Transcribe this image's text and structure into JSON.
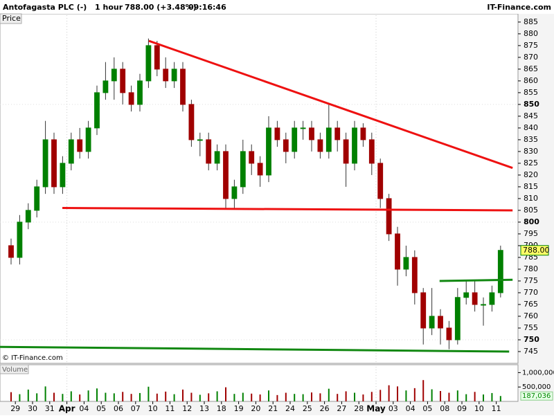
{
  "chart_data": {
    "type": "candlestick",
    "title": "Antofagasta PLC (-)",
    "interval": "1 hour",
    "last_quote": "788.00 (+3.48%)",
    "time": "09:16:46",
    "source": "IT-Finance.com",
    "copyright": "© IT-Finance.com",
    "price_label": "Price",
    "volume_label": "Volume",
    "categories": [
      "29",
      "30",
      "31",
      "Apr",
      "04",
      "05",
      "06",
      "07",
      "10",
      "11",
      "12",
      "13",
      "18",
      "19",
      "20",
      "21",
      "24",
      "25",
      "26",
      "27",
      "28",
      "May",
      "03",
      "04",
      "05",
      "08",
      "09",
      "10",
      "11"
    ],
    "candles_per_category": 2,
    "up_color": "#008000",
    "down_color": "#a00000",
    "open": [
      790,
      785,
      800,
      805,
      815,
      835,
      815,
      825,
      835,
      830,
      840,
      855,
      860,
      865,
      855,
      850,
      860,
      875,
      865,
      860,
      865,
      850,
      835,
      835,
      825,
      830,
      810,
      815,
      830,
      825,
      820,
      840,
      835,
      830,
      840,
      840,
      835,
      830,
      840,
      835,
      825,
      840,
      835,
      825,
      810,
      795,
      780,
      785,
      770,
      755,
      760,
      755,
      750,
      768,
      770,
      765,
      765,
      770
    ],
    "high": [
      793,
      803,
      808,
      818,
      843,
      838,
      828,
      838,
      840,
      843,
      858,
      868,
      870,
      868,
      858,
      863,
      878,
      877,
      870,
      868,
      868,
      852,
      838,
      838,
      833,
      833,
      818,
      835,
      833,
      828,
      845,
      843,
      838,
      843,
      843,
      843,
      838,
      850,
      843,
      838,
      843,
      842,
      838,
      827,
      812,
      798,
      790,
      788,
      772,
      772,
      763,
      758,
      772,
      775,
      775,
      768,
      773,
      790
    ],
    "low": [
      782,
      782,
      797,
      802,
      812,
      812,
      812,
      822,
      827,
      827,
      837,
      852,
      852,
      850,
      847,
      847,
      857,
      862,
      857,
      857,
      847,
      832,
      828,
      822,
      822,
      806,
      806,
      812,
      820,
      815,
      817,
      832,
      825,
      827,
      835,
      830,
      827,
      827,
      830,
      815,
      822,
      832,
      820,
      806,
      792,
      773,
      777,
      765,
      748,
      752,
      748,
      746,
      748,
      765,
      762,
      756,
      762,
      768
    ],
    "close": [
      785,
      800,
      805,
      815,
      835,
      815,
      825,
      835,
      830,
      840,
      855,
      860,
      865,
      855,
      850,
      860,
      875,
      865,
      860,
      865,
      850,
      835,
      835,
      825,
      830,
      810,
      815,
      830,
      825,
      820,
      840,
      835,
      830,
      840,
      840,
      835,
      830,
      840,
      835,
      825,
      840,
      835,
      825,
      810,
      795,
      780,
      785,
      770,
      755,
      760,
      755,
      750,
      768,
      770,
      765,
      765,
      770,
      788
    ],
    "close_value_labels": [
      null,
      null,
      null,
      null,
      null,
      null,
      null,
      null,
      null,
      null,
      null,
      null,
      null,
      null,
      null,
      null,
      null,
      null,
      null,
      null,
      null,
      null,
      null,
      null,
      null,
      null,
      null,
      null,
      null,
      null,
      null,
      null,
      null,
      null,
      null,
      null,
      null,
      null,
      null,
      null,
      null,
      null,
      null,
      null,
      null,
      null,
      null,
      null,
      null,
      null,
      null,
      null,
      null,
      null,
      null,
      null,
      null,
      "788.00"
    ],
    "volume": [
      320000,
      250000,
      410000,
      280000,
      520000,
      300000,
      260000,
      350000,
      240000,
      380000,
      450000,
      300000,
      280000,
      330000,
      260000,
      290000,
      510000,
      270000,
      340000,
      250000,
      410000,
      300000,
      230000,
      280000,
      350000,
      490000,
      260000,
      300000,
      270000,
      240000,
      380000,
      220000,
      300000,
      260000,
      250000,
      310000,
      280000,
      440000,
      260000,
      350000,
      300000,
      240000,
      330000,
      400000,
      560000,
      520000,
      380000,
      460000,
      740000,
      420000,
      360000,
      300000,
      380000,
      250000,
      330000,
      240000,
      290000,
      187036
    ],
    "volume_value_labels": [
      null,
      null,
      null,
      null,
      null,
      null,
      null,
      null,
      null,
      null,
      null,
      null,
      null,
      null,
      null,
      null,
      null,
      null,
      null,
      null,
      null,
      null,
      null,
      null,
      null,
      null,
      null,
      null,
      null,
      null,
      null,
      null,
      null,
      null,
      null,
      null,
      null,
      null,
      null,
      null,
      null,
      null,
      null,
      null,
      null,
      null,
      null,
      null,
      null,
      null,
      null,
      null,
      null,
      null,
      null,
      null,
      null,
      "187,036"
    ],
    "xlim": [
      -1.29,
      59.03
    ],
    "ylim": [
      740,
      887.9
    ],
    "yticks": [
      745,
      750,
      755,
      760,
      765,
      770,
      775,
      780,
      785,
      790,
      795,
      800,
      805,
      810,
      815,
      820,
      825,
      830,
      835,
      840,
      845,
      850,
      855,
      860,
      865,
      870,
      875,
      880,
      885
    ],
    "volume_ylim": [
      0,
      1250000
    ],
    "volume_ticks": [
      {
        "value": 1000000,
        "label": "1,000,000"
      },
      {
        "value": 500000,
        "label": "500,000"
      }
    ],
    "trend_lines": [
      {
        "color": "#ee1111",
        "x": [
          16.05,
          58.4
        ],
        "y": [
          877,
          823
        ]
      },
      {
        "color": "#ee1111",
        "x": [
          5.97,
          58.4
        ],
        "y": [
          806,
          805
        ]
      },
      {
        "color": "#118811",
        "x": [
          -1.29,
          58
        ],
        "y": [
          747,
          745
        ]
      },
      {
        "color": "#118811",
        "x": [
          49.9,
          58.4
        ],
        "y": [
          775,
          775.5
        ]
      }
    ]
  }
}
